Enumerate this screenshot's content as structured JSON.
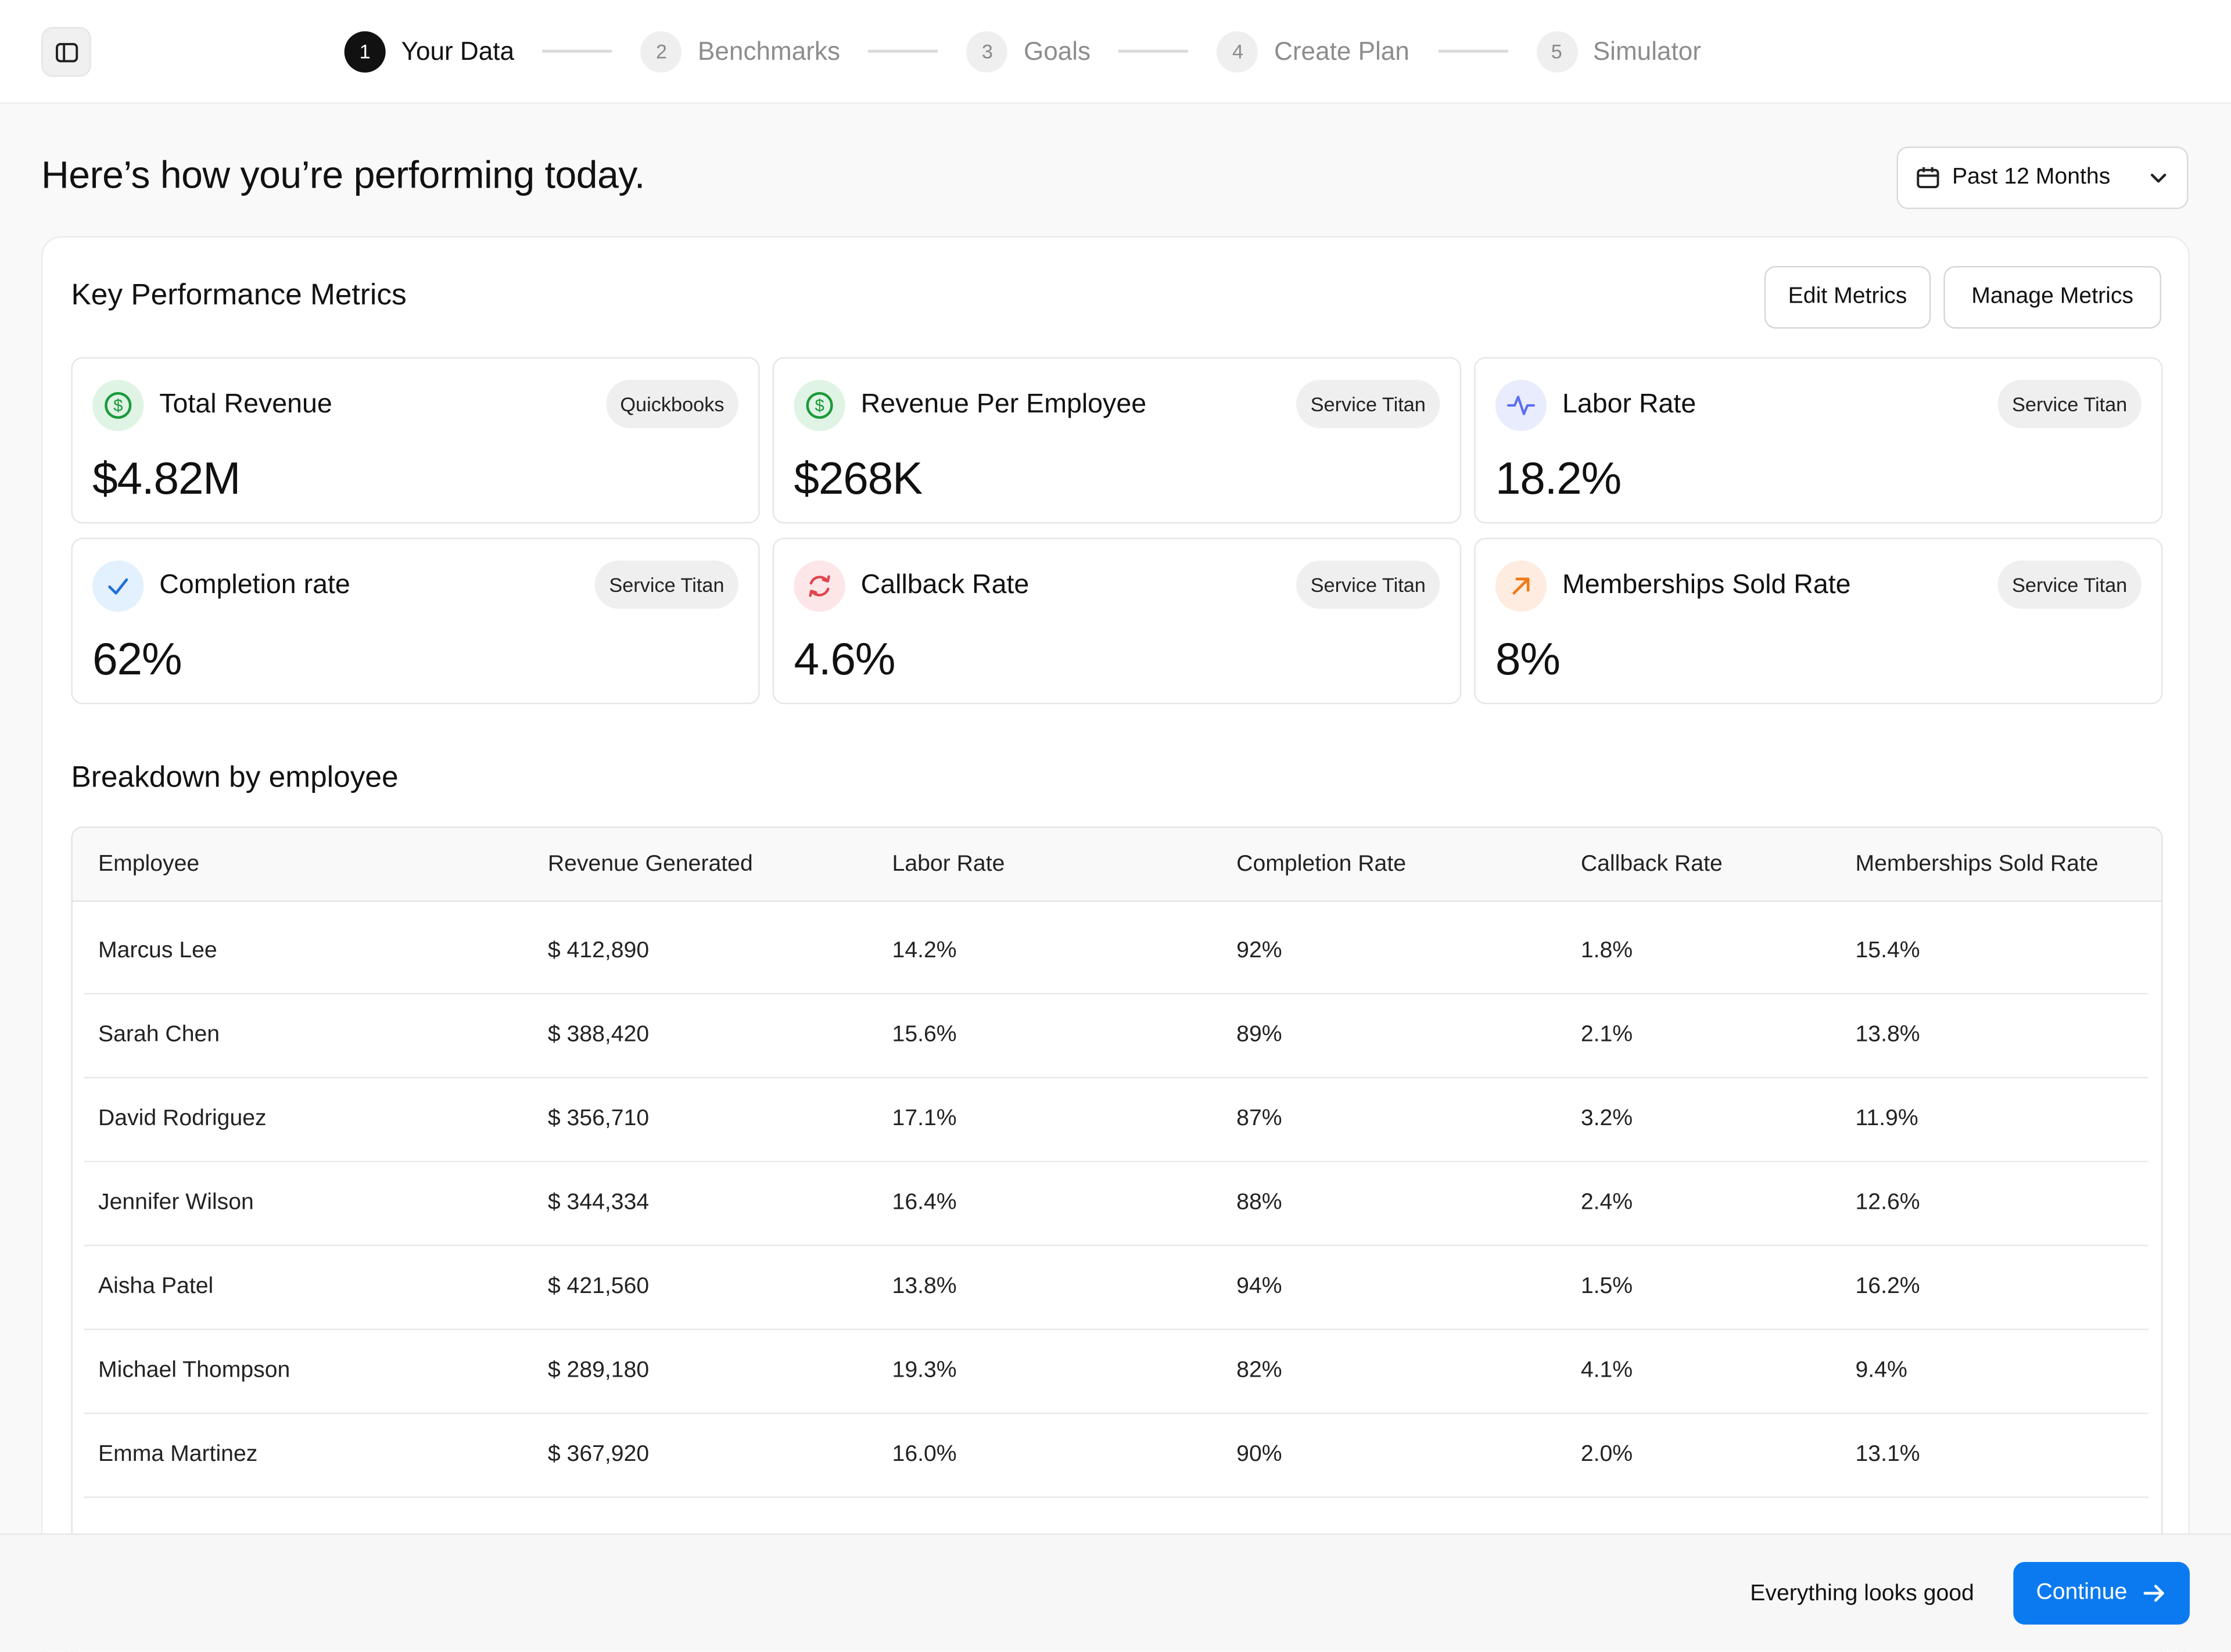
{
  "stepper": {
    "steps": [
      {
        "num": "1",
        "label": "Your Data"
      },
      {
        "num": "2",
        "label": "Benchmarks"
      },
      {
        "num": "3",
        "label": "Goals"
      },
      {
        "num": "4",
        "label": "Create Plan"
      },
      {
        "num": "5",
        "label": "Simulator"
      }
    ],
    "active_step": "1"
  },
  "header": {
    "title": "Here’s how you’re performing today.",
    "date_range": "Past 12 Months"
  },
  "kpi": {
    "title": "Key Performance Metrics",
    "edit_label": "Edit Metrics",
    "manage_label": "Manage Metrics",
    "metrics": [
      {
        "label": "Total Revenue",
        "source": "Quickbooks",
        "value": "$4.82M",
        "icon": "dollar-icon"
      },
      {
        "label": "Revenue Per Employee",
        "source": "Service Titan",
        "value": "$268K",
        "icon": "dollar-icon"
      },
      {
        "label": "Labor Rate",
        "source": "Service Titan",
        "value": "18.2%",
        "icon": "activity-icon"
      },
      {
        "label": "Completion rate",
        "source": "Service Titan",
        "value": "62%",
        "icon": "check-icon"
      },
      {
        "label": "Callback Rate",
        "source": "Service Titan",
        "value": "4.6%",
        "icon": "refresh-icon"
      },
      {
        "label": "Memberships Sold Rate",
        "source": "Service Titan",
        "value": "8%",
        "icon": "arrow-up-right-icon"
      }
    ]
  },
  "breakdown": {
    "title": "Breakdown by employee",
    "columns": [
      "Employee",
      "Revenue Generated",
      "Labor Rate",
      "Completion Rate",
      "Callback Rate",
      "Memberships Sold Rate"
    ],
    "rows": [
      [
        "Marcus Lee",
        "$ 412,890",
        "14.2%",
        "92%",
        "1.8%",
        "15.4%"
      ],
      [
        "Sarah Chen",
        "$ 388,420",
        "15.6%",
        "89%",
        "2.1%",
        "13.8%"
      ],
      [
        "David Rodriguez",
        "$ 356,710",
        "17.1%",
        "87%",
        "3.2%",
        "11.9%"
      ],
      [
        "Jennifer Wilson",
        "$ 344,334",
        "16.4%",
        "88%",
        "2.4%",
        "12.6%"
      ],
      [
        "Aisha Patel",
        "$ 421,560",
        "13.8%",
        "94%",
        "1.5%",
        "16.2%"
      ],
      [
        "Michael Thompson",
        "$ 289,180",
        "19.3%",
        "82%",
        "4.1%",
        "9.4%"
      ],
      [
        "Emma Martinez",
        "$ 367,920",
        "16.0%",
        "90%",
        "2.0%",
        "13.1%"
      ]
    ]
  },
  "footer": {
    "message": "Everything looks good",
    "continue_label": "Continue"
  },
  "colors": {
    "accent": "#0b7af0",
    "green_icon": "#1a9a3a",
    "blue_icon": "#5b6ef0",
    "red_icon": "#e0454f",
    "orange_icon": "#f07a1a"
  }
}
